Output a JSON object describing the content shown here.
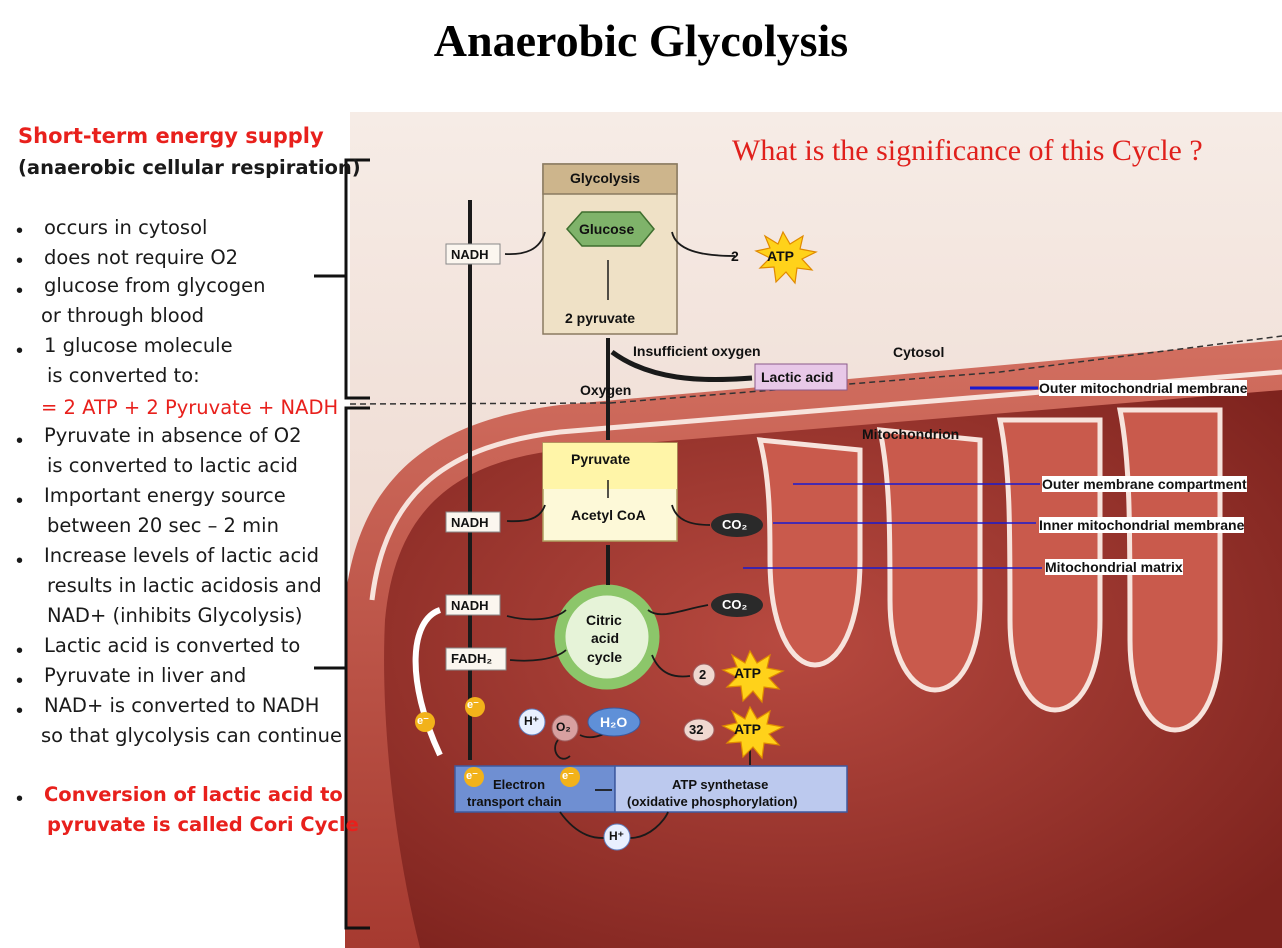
{
  "title": "Anaerobic Glycolysis",
  "question": "What is the significance of this Cycle ?",
  "left_panel": {
    "heading": "Short-term energy supply",
    "subheading": "(anaerobic cellular respiration)",
    "bullets": [
      {
        "l1": "occurs in cytosol"
      },
      {
        "l1": "does not require O2"
      },
      {
        "l1": "glucose from glycogen",
        "l2": "or through blood"
      },
      {
        "l1": "1 glucose molecule",
        "l2": "is converted to:",
        "l3": "=  2 ATP + 2 Pyruvate + NADH"
      },
      {
        "l1": "Pyruvate in absence of O2",
        "l2": "is converted to lactic acid"
      },
      {
        "l1": "Important energy source",
        "l2": "between 20 sec – 2 min"
      },
      {
        "l1": "Increase levels of lactic acid",
        "l2": "results in lactic acidosis and",
        "l3": "NAD+ (inhibits Glycolysis)"
      },
      {
        "l1": "Lactic acid is converted to"
      },
      {
        "l1": "Pyruvate in liver and"
      },
      {
        "l1": "NAD+ is converted to NADH",
        "l2": "so that glycolysis can continue"
      },
      {
        "l1": "Conversion of lactic acid to",
        "l2": "pyruvate is called Cori Cycle"
      }
    ]
  },
  "diagram": {
    "glycolysis": "Glycolysis",
    "glucose": "Glucose",
    "two_pyruvate": "2 pyruvate",
    "nadh": "NADH",
    "fadh2": "FADH₂",
    "atp": "ATP",
    "atp_count_2": "2",
    "atp_count_32": "32",
    "insufficient_oxygen": "Insufficient oxygen",
    "lactic_acid": "Lactic acid",
    "oxygen": "Oxygen",
    "cytosol": "Cytosol",
    "mitochondrion": "Mitochondrion",
    "pyruvate": "Pyruvate",
    "acetyl_coa": "Acetyl CoA",
    "co2": "CO₂",
    "citric_1": "Citric",
    "citric_2": "acid",
    "citric_3": "cycle",
    "h_plus": "H⁺",
    "o2": "O₂",
    "h2o": "H₂O",
    "electron": "e⁻",
    "etc_1": "Electron",
    "etc_2": "transport chain",
    "atp_synth_1": "ATP synthetase",
    "atp_synth_2": "(oxidative phosphorylation)"
  },
  "annotations": {
    "outer_membrane": "Outer mitochondrial membrane",
    "outer_compartment": "Outer membrane compartment",
    "inner_membrane": "Inner mitochondrial membrane",
    "matrix": "Mitochondrial matrix"
  },
  "colors": {
    "accent_red": "#e8201c",
    "annotation_line": "#1a1ad0"
  }
}
